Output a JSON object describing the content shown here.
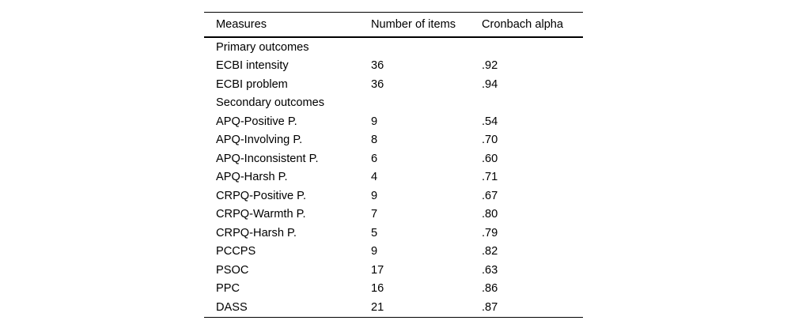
{
  "colors": {
    "background": "#ffffff",
    "text": "#000000",
    "rule": "#000000"
  },
  "table": {
    "columns": {
      "measure": "Measures",
      "items": "Number of items",
      "alpha": "Cronbach alpha"
    },
    "rows": [
      {
        "measure": "Primary outcomes",
        "items": "",
        "alpha": "",
        "section": true
      },
      {
        "measure": "ECBI intensity",
        "items": "36",
        "alpha": ".92",
        "section": false
      },
      {
        "measure": "ECBI problem",
        "items": "36",
        "alpha": ".94",
        "section": false
      },
      {
        "measure": "Secondary outcomes",
        "items": "",
        "alpha": "",
        "section": true
      },
      {
        "measure": "APQ-Positive P.",
        "items": "9",
        "alpha": ".54",
        "section": false
      },
      {
        "measure": "APQ-Involving P.",
        "items": "8",
        "alpha": ".70",
        "section": false
      },
      {
        "measure": "APQ-Inconsistent P.",
        "items": "6",
        "alpha": ".60",
        "section": false
      },
      {
        "measure": "APQ-Harsh P.",
        "items": "4",
        "alpha": ".71",
        "section": false
      },
      {
        "measure": "CRPQ-Positive P.",
        "items": "9",
        "alpha": ".67",
        "section": false
      },
      {
        "measure": "CRPQ-Warmth P.",
        "items": "7",
        "alpha": ".80",
        "section": false
      },
      {
        "measure": "CRPQ-Harsh P.",
        "items": "5",
        "alpha": ".79",
        "section": false
      },
      {
        "measure": "PCCPS",
        "items": "9",
        "alpha": ".82",
        "section": false
      },
      {
        "measure": "PSOC",
        "items": "17",
        "alpha": ".63",
        "section": false
      },
      {
        "measure": "PPC",
        "items": "16",
        "alpha": ".86",
        "section": false
      },
      {
        "measure": "DASS",
        "items": "21",
        "alpha": ".87",
        "section": false
      }
    ]
  }
}
